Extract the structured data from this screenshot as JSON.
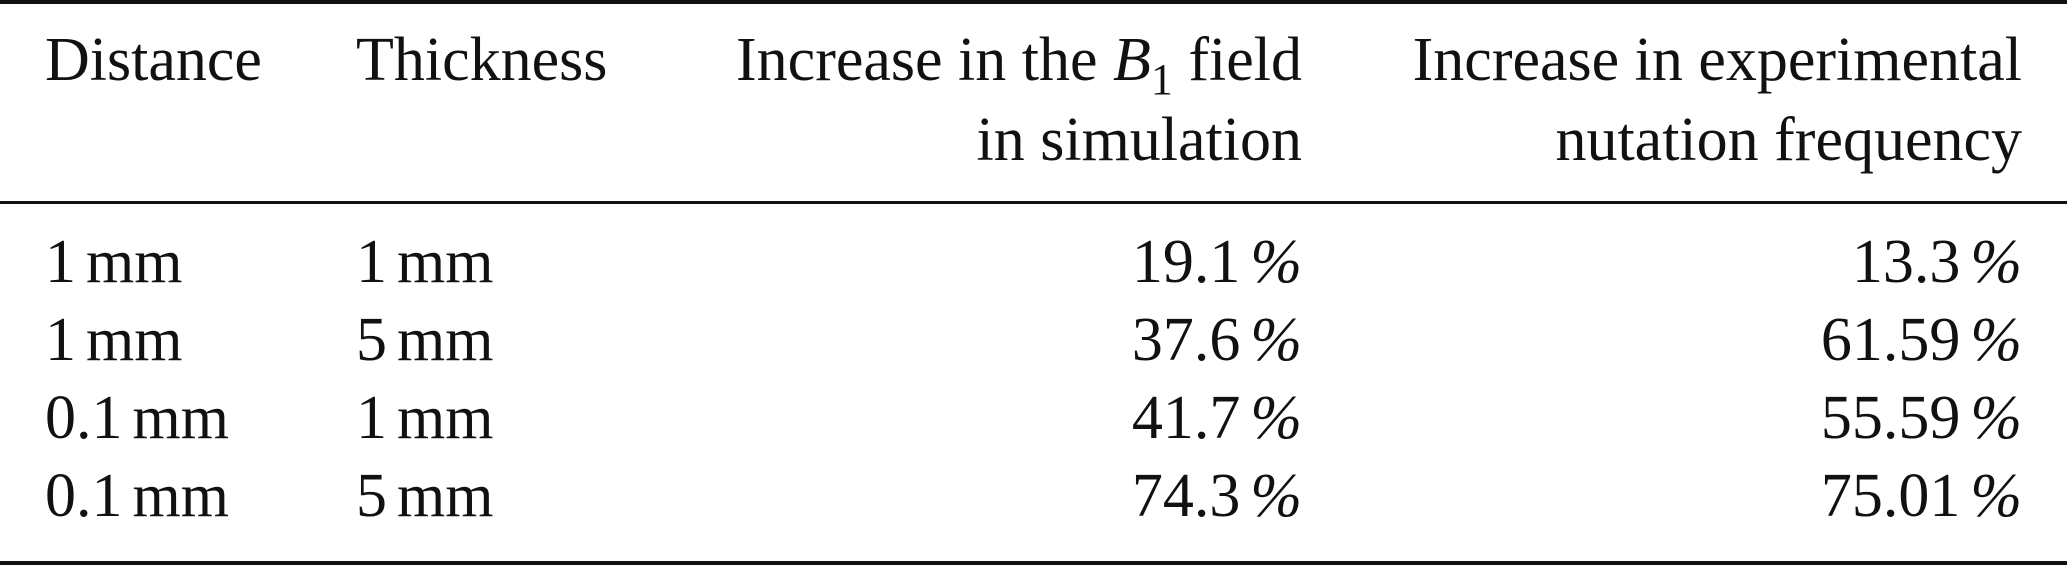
{
  "table": {
    "headers": {
      "distance": "Distance",
      "thickness": "Thickness",
      "sim_line1_prefix": "Increase in the",
      "sim_symbol": "B",
      "sim_symbol_sub": "1",
      "sim_line1_suffix": "field",
      "sim_line2": "in simulation",
      "exp_line1": "Increase in experimental",
      "exp_line2": "nutation frequency"
    },
    "rows": [
      {
        "distance": "1",
        "distance_unit": "mm",
        "thickness": "1",
        "thickness_unit": "mm",
        "sim": "19.1",
        "exp": "13.3"
      },
      {
        "distance": "1",
        "distance_unit": "mm",
        "thickness": "5",
        "thickness_unit": "mm",
        "sim": "37.6",
        "exp": "61.59"
      },
      {
        "distance": "0.1",
        "distance_unit": "mm",
        "thickness": "1",
        "thickness_unit": "mm",
        "sim": "41.7",
        "exp": "55.59"
      },
      {
        "distance": "0.1",
        "distance_unit": "mm",
        "thickness": "5",
        "thickness_unit": "mm",
        "sim": "74.3",
        "exp": "75.01"
      }
    ],
    "percent_symbol": "%"
  }
}
